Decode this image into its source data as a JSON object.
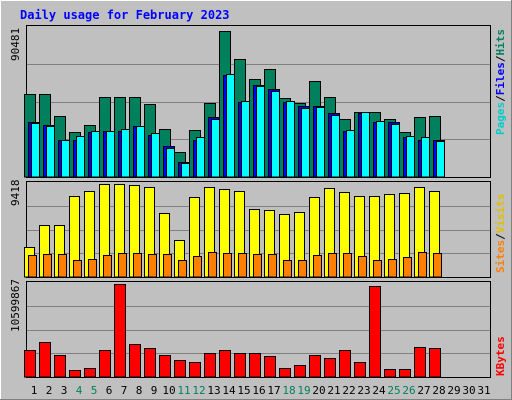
{
  "chart_data": [
    {
      "type": "bar",
      "title": "Daily usage for February 2023",
      "max_label": "90481",
      "right_label": {
        "parts": [
          "Pages",
          "/",
          "Files",
          "/",
          "Hits"
        ]
      },
      "categories": [
        "1",
        "2",
        "3",
        "4",
        "5",
        "6",
        "7",
        "8",
        "9",
        "10",
        "11",
        "12",
        "13",
        "14",
        "15",
        "16",
        "17",
        "18",
        "19",
        "20",
        "21",
        "22",
        "23",
        "24",
        "25",
        "26",
        "27",
        "28",
        "29",
        "30",
        "31"
      ],
      "weekend_days": [
        "4",
        "5",
        "11",
        "12",
        "18",
        "19",
        "25",
        "26"
      ],
      "ylim": [
        0,
        90481
      ],
      "grid": true,
      "series": [
        {
          "name": "Hits",
          "values": [
            50700,
            50700,
            36900,
            27200,
            31400,
            48400,
            48400,
            48400,
            44400,
            29100,
            15300,
            28300,
            45200,
            88500,
            71600,
            59800,
            65800,
            47800,
            45200,
            58500,
            48400,
            35300,
            39200,
            39200,
            35300,
            27200,
            36200,
            36900,
            0,
            0,
            0
          ]
        },
        {
          "name": "Files",
          "values": [
            33400,
            31400,
            22600,
            22600,
            27200,
            28000,
            28000,
            30700,
            25300,
            18700,
            9200,
            22600,
            36200,
            61900,
            45800,
            55900,
            53200,
            45800,
            43300,
            43300,
            38600,
            28000,
            38600,
            33400,
            33400,
            24000,
            22600,
            22600,
            0,
            0,
            0
          ]
        },
        {
          "name": "Pages",
          "values": [
            32700,
            30700,
            22600,
            24600,
            28000,
            28000,
            29400,
            30700,
            26500,
            17400,
            8400,
            24000,
            35500,
            62500,
            46400,
            55200,
            52500,
            46400,
            41900,
            42600,
            37900,
            28700,
            39200,
            33900,
            32000,
            24600,
            24000,
            21900,
            0,
            0,
            0
          ]
        }
      ],
      "colors": {
        "Hits": "#00805c",
        "Files": "#0000ff",
        "Pages": "#00ffff"
      }
    },
    {
      "type": "bar",
      "max_label": "9418",
      "right_label": {
        "parts": [
          "Sites",
          "/",
          "Visits"
        ]
      },
      "categories": [
        "1",
        "2",
        "3",
        "4",
        "5",
        "6",
        "7",
        "8",
        "9",
        "10",
        "11",
        "12",
        "13",
        "14",
        "15",
        "16",
        "17",
        "18",
        "19",
        "20",
        "21",
        "22",
        "23",
        "24",
        "25",
        "26",
        "27",
        "28",
        "29",
        "30",
        "31"
      ],
      "ylim": [
        0,
        9418
      ],
      "grid": true,
      "series": [
        {
          "name": "Visits",
          "values": [
            3000,
            5300,
            5300,
            8200,
            8700,
            9400,
            9400,
            9300,
            9100,
            6500,
            3700,
            8100,
            9100,
            8900,
            8700,
            6900,
            6800,
            6400,
            6600,
            8100,
            9000,
            8600,
            8200,
            8200,
            8400,
            8500,
            9100,
            8700,
            0,
            0,
            0
          ]
        },
        {
          "name": "Sites",
          "values": [
            2200,
            2300,
            2300,
            1700,
            1800,
            2200,
            2400,
            2400,
            2300,
            2300,
            1700,
            2100,
            2500,
            2400,
            2400,
            2300,
            2300,
            1700,
            1700,
            2200,
            2400,
            2400,
            2100,
            1700,
            1800,
            2000,
            2500,
            2400,
            0,
            0,
            0
          ]
        }
      ],
      "colors": {
        "Visits": "#ffff00",
        "Sites": "#ff8000"
      }
    },
    {
      "type": "bar",
      "max_label": "10599867",
      "right_label": {
        "parts": [
          "KBytes"
        ]
      },
      "categories": [
        "1",
        "2",
        "3",
        "4",
        "5",
        "6",
        "7",
        "8",
        "9",
        "10",
        "11",
        "12",
        "13",
        "14",
        "15",
        "16",
        "17",
        "18",
        "19",
        "20",
        "21",
        "22",
        "23",
        "24",
        "25",
        "26",
        "27",
        "28",
        "29",
        "30",
        "31"
      ],
      "ylim": [
        0,
        10599867
      ],
      "grid": true,
      "series": [
        {
          "name": "KBytes",
          "values": [
            3070000,
            4020000,
            2540000,
            850000,
            1060000,
            3070000,
            10600000,
            3710000,
            3280000,
            2540000,
            1910000,
            1700000,
            2750000,
            3070000,
            2750000,
            2750000,
            2430000,
            1060000,
            1380000,
            2540000,
            2220000,
            3070000,
            1700000,
            10390000,
            950000,
            950000,
            3390000,
            3280000,
            0,
            0,
            0
          ]
        }
      ],
      "colors": {
        "KBytes": "#ff0000"
      }
    }
  ]
}
